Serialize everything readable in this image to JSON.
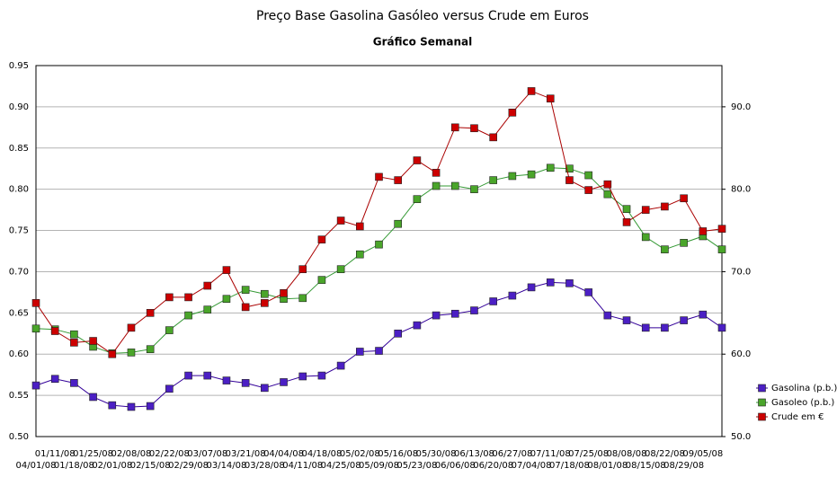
{
  "chart_data": {
    "type": "line",
    "title": "Preço Base Gasolina Gasóleo versus Crude em Euros",
    "subtitle": "Gráfico Semanal",
    "categories": [
      "04/01/08",
      "01/11/08",
      "01/18/08",
      "01/25/08",
      "02/01/08",
      "02/08/08",
      "02/15/08",
      "02/22/08",
      "02/29/08",
      "03/07/08",
      "03/14/08",
      "03/21/08",
      "03/28/08",
      "04/04/08",
      "04/11/08",
      "04/18/08",
      "04/25/08",
      "05/02/08",
      "05/09/08",
      "05/16/08",
      "05/23/08",
      "05/30/08",
      "06/06/08",
      "06/13/08",
      "06/20/08",
      "06/27/08",
      "07/04/08",
      "07/11/08",
      "07/18/08",
      "07/25/08",
      "08/01/08",
      "08/08/08",
      "08/15/08",
      "08/22/08",
      "08/29/08",
      "09/05/08",
      null
    ],
    "series": [
      {
        "name": "Gasolina (p.b.)",
        "color": "#330099",
        "marker": "#4b1fc4",
        "values": [
          0.562,
          0.57,
          0.565,
          0.548,
          0.538,
          0.536,
          0.537,
          0.558,
          0.574,
          0.574,
          0.568,
          0.565,
          0.559,
          0.566,
          0.573,
          0.574,
          0.586,
          0.603,
          0.604,
          0.625,
          0.635,
          0.647,
          0.649,
          0.653,
          0.664,
          0.671,
          0.681,
          0.687,
          0.686,
          0.675,
          0.647,
          0.641,
          0.632,
          0.632,
          0.641,
          0.648,
          0.632
        ]
      },
      {
        "name": "Gasoleo (p.b.)",
        "color": "#339933",
        "marker": "#4aa52a",
        "values": [
          0.631,
          0.63,
          0.624,
          0.609,
          0.601,
          0.602,
          0.606,
          0.629,
          0.647,
          0.654,
          0.667,
          0.678,
          0.673,
          0.667,
          0.668,
          0.69,
          0.703,
          0.721,
          0.733,
          0.758,
          0.788,
          0.804,
          0.804,
          0.8,
          0.811,
          0.816,
          0.818,
          0.826,
          0.825,
          0.817,
          0.794,
          0.776,
          0.742,
          0.727,
          0.735,
          0.743,
          0.727
        ]
      },
      {
        "name": "Crude em €",
        "color": "#aa0000",
        "marker": "#cc0000",
        "axis": "y2",
        "values": [
          66.2,
          62.8,
          61.4,
          61.6,
          60.0,
          63.2,
          65.0,
          66.9,
          66.9,
          68.3,
          70.2,
          65.7,
          66.2,
          67.4,
          70.3,
          73.9,
          76.2,
          75.5,
          81.5,
          81.1,
          83.5,
          82.0,
          87.5,
          87.4,
          86.3,
          89.3,
          91.9,
          91.0,
          81.1,
          79.9,
          80.6,
          76.0,
          77.5,
          77.9,
          78.9,
          74.9,
          75.2
        ]
      }
    ],
    "ylim": [
      0.5,
      0.95
    ],
    "yticks": [
      {
        "value": 0.5,
        "label": "0.50"
      },
      0.55,
      {
        "value": 0.6,
        "label": "0.60"
      },
      0.65,
      {
        "value": 0.7,
        "label": "0.70"
      },
      0.75,
      {
        "value": 0.8,
        "label": "0.80"
      },
      0.85,
      {
        "value": 0.9,
        "label": "0.90"
      },
      0.95
    ],
    "y2lim": [
      50,
      95
    ],
    "y2ticks": [
      {
        "value": 50,
        "label": "50.0"
      },
      {
        "value": 60,
        "label": "60.0"
      },
      {
        "value": 70,
        "label": "70.0"
      },
      {
        "value": 80,
        "label": "80.0"
      },
      {
        "value": 90,
        "label": "90.0"
      }
    ],
    "grid": true,
    "legend": "right"
  }
}
